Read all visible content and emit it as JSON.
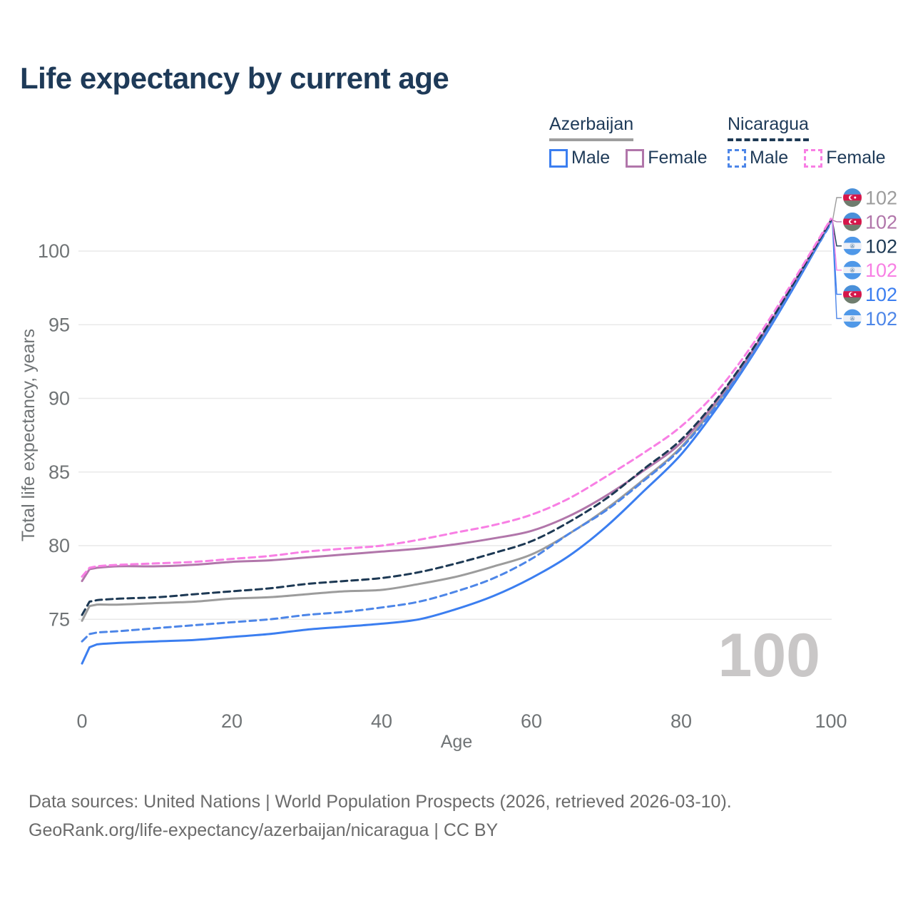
{
  "title": "Life expectancy by current age",
  "legend": {
    "groups": [
      {
        "name": "Azerbaijan",
        "style": "solid",
        "items": [
          {
            "label": "Male",
            "color": "#3b7ef0"
          },
          {
            "label": "Female",
            "color": "#b176aa"
          }
        ]
      },
      {
        "name": "Nicaragua",
        "style": "dashed",
        "items": [
          {
            "label": "Male",
            "color": "#4d86e8"
          },
          {
            "label": "Female",
            "color": "#f87fe4"
          }
        ]
      }
    ]
  },
  "watermark": "100",
  "footer": {
    "line1": "Data sources: United Nations | World Population Prospects (2026, retrieved 2026-03-10).",
    "line2": "GeoRank.org/life-expectancy/azerbaijan/nicaragua | CC BY"
  },
  "chart_data": {
    "type": "line",
    "title": "Life expectancy by current age",
    "xlabel": "Age",
    "ylabel": "Total life expectancy, years",
    "xlim": [
      0,
      100
    ],
    "ylim": [
      71,
      103
    ],
    "xticks": [
      0,
      20,
      40,
      60,
      80,
      100
    ],
    "yticks": [
      75,
      80,
      85,
      90,
      95,
      100
    ],
    "grid": "horizontal-only",
    "legend_position": "top-right",
    "ages": [
      0,
      1,
      2,
      5,
      10,
      15,
      20,
      25,
      30,
      35,
      40,
      45,
      50,
      55,
      60,
      65,
      70,
      75,
      80,
      85,
      90,
      95,
      100
    ],
    "series": [
      {
        "id": "az-total",
        "name": "Azerbaijan (country line)",
        "country": "Azerbaijan",
        "flag": "az",
        "color": "#9c9c9c",
        "dash": false,
        "label_row": 0,
        "end_label": "102",
        "values": [
          74.9,
          75.9,
          76.0,
          76.0,
          76.1,
          76.2,
          76.4,
          76.5,
          76.7,
          76.9,
          77.0,
          77.4,
          77.9,
          78.6,
          79.4,
          80.8,
          82.5,
          84.5,
          86.7,
          89.8,
          93.5,
          97.7,
          102.0
        ]
      },
      {
        "id": "az-male",
        "name": "Azerbaijan Male",
        "country": "Azerbaijan",
        "flag": "az",
        "color": "#3b7ef0",
        "dash": false,
        "label_row": 4,
        "end_label": "102",
        "values": [
          72.0,
          73.1,
          73.3,
          73.4,
          73.5,
          73.6,
          73.8,
          74.0,
          74.3,
          74.5,
          74.7,
          75.0,
          75.7,
          76.6,
          77.8,
          79.3,
          81.3,
          83.7,
          86.2,
          89.5,
          93.3,
          97.5,
          102.0
        ]
      },
      {
        "id": "az-female",
        "name": "Azerbaijan Female",
        "country": "Azerbaijan",
        "flag": "az",
        "color": "#b176aa",
        "dash": false,
        "label_row": 1,
        "end_label": "102",
        "values": [
          77.6,
          78.4,
          78.5,
          78.6,
          78.6,
          78.7,
          78.9,
          79.0,
          79.2,
          79.4,
          79.6,
          79.8,
          80.1,
          80.5,
          81.0,
          82.0,
          83.4,
          85.1,
          87.0,
          90.0,
          93.6,
          97.8,
          102.1
        ]
      },
      {
        "id": "ni-male",
        "name": "Nicaragua Male",
        "country": "Nicaragua",
        "flag": "ni",
        "color": "#4d86e8",
        "dash": true,
        "label_row": 5,
        "end_label": "102",
        "values": [
          73.5,
          74.0,
          74.1,
          74.2,
          74.4,
          74.6,
          74.8,
          75.0,
          75.3,
          75.5,
          75.8,
          76.2,
          76.9,
          77.8,
          79.1,
          80.8,
          82.4,
          84.4,
          86.6,
          89.7,
          93.4,
          97.6,
          101.9
        ]
      },
      {
        "id": "ni-total",
        "name": "Nicaragua (country line)",
        "country": "Nicaragua",
        "flag": "ni",
        "color": "#1d3954",
        "dash": true,
        "label_row": 2,
        "end_label": "102",
        "values": [
          75.3,
          76.2,
          76.3,
          76.4,
          76.5,
          76.7,
          76.9,
          77.1,
          77.4,
          77.6,
          77.8,
          78.2,
          78.8,
          79.5,
          80.3,
          81.6,
          83.2,
          85.2,
          87.2,
          90.1,
          93.7,
          97.8,
          102.1
        ]
      },
      {
        "id": "ni-female",
        "name": "Nicaragua Female",
        "country": "Nicaragua",
        "flag": "ni",
        "color": "#f87fe4",
        "dash": true,
        "label_row": 3,
        "end_label": "102",
        "values": [
          77.9,
          78.5,
          78.6,
          78.7,
          78.8,
          78.9,
          79.1,
          79.3,
          79.6,
          79.8,
          80.0,
          80.4,
          80.9,
          81.4,
          82.1,
          83.2,
          84.7,
          86.3,
          88.1,
          90.6,
          94.0,
          98.0,
          102.2
        ]
      }
    ]
  }
}
